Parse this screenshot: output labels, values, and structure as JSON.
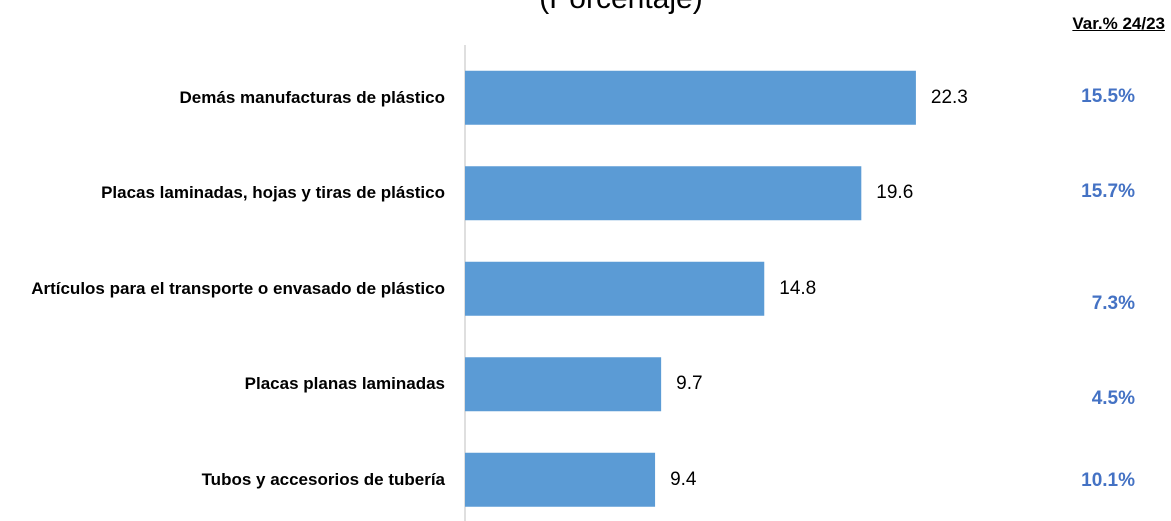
{
  "chart_data": {
    "type": "bar",
    "orientation": "horizontal",
    "title": "(Porcentaje)",
    "categories": [
      "Demás manufacturas de plástico",
      "Placas laminadas, hojas y tiras de plástico",
      "Artículos para el transporte o envasado de plástico",
      "Placas planas laminadas",
      "Tubos y accesorios de tubería"
    ],
    "values": [
      22.3,
      19.6,
      14.8,
      9.7,
      9.4
    ],
    "color": "#5b9bd5",
    "variation": {
      "title": "Var.% 24/23",
      "values": [
        15.5,
        15.7,
        7.3,
        4.5,
        10.1
      ],
      "value_labels": [
        "15.5%",
        "15.7%",
        "7.3%",
        "4.5%",
        "10.1%"
      ],
      "color": "#4472c4"
    }
  }
}
